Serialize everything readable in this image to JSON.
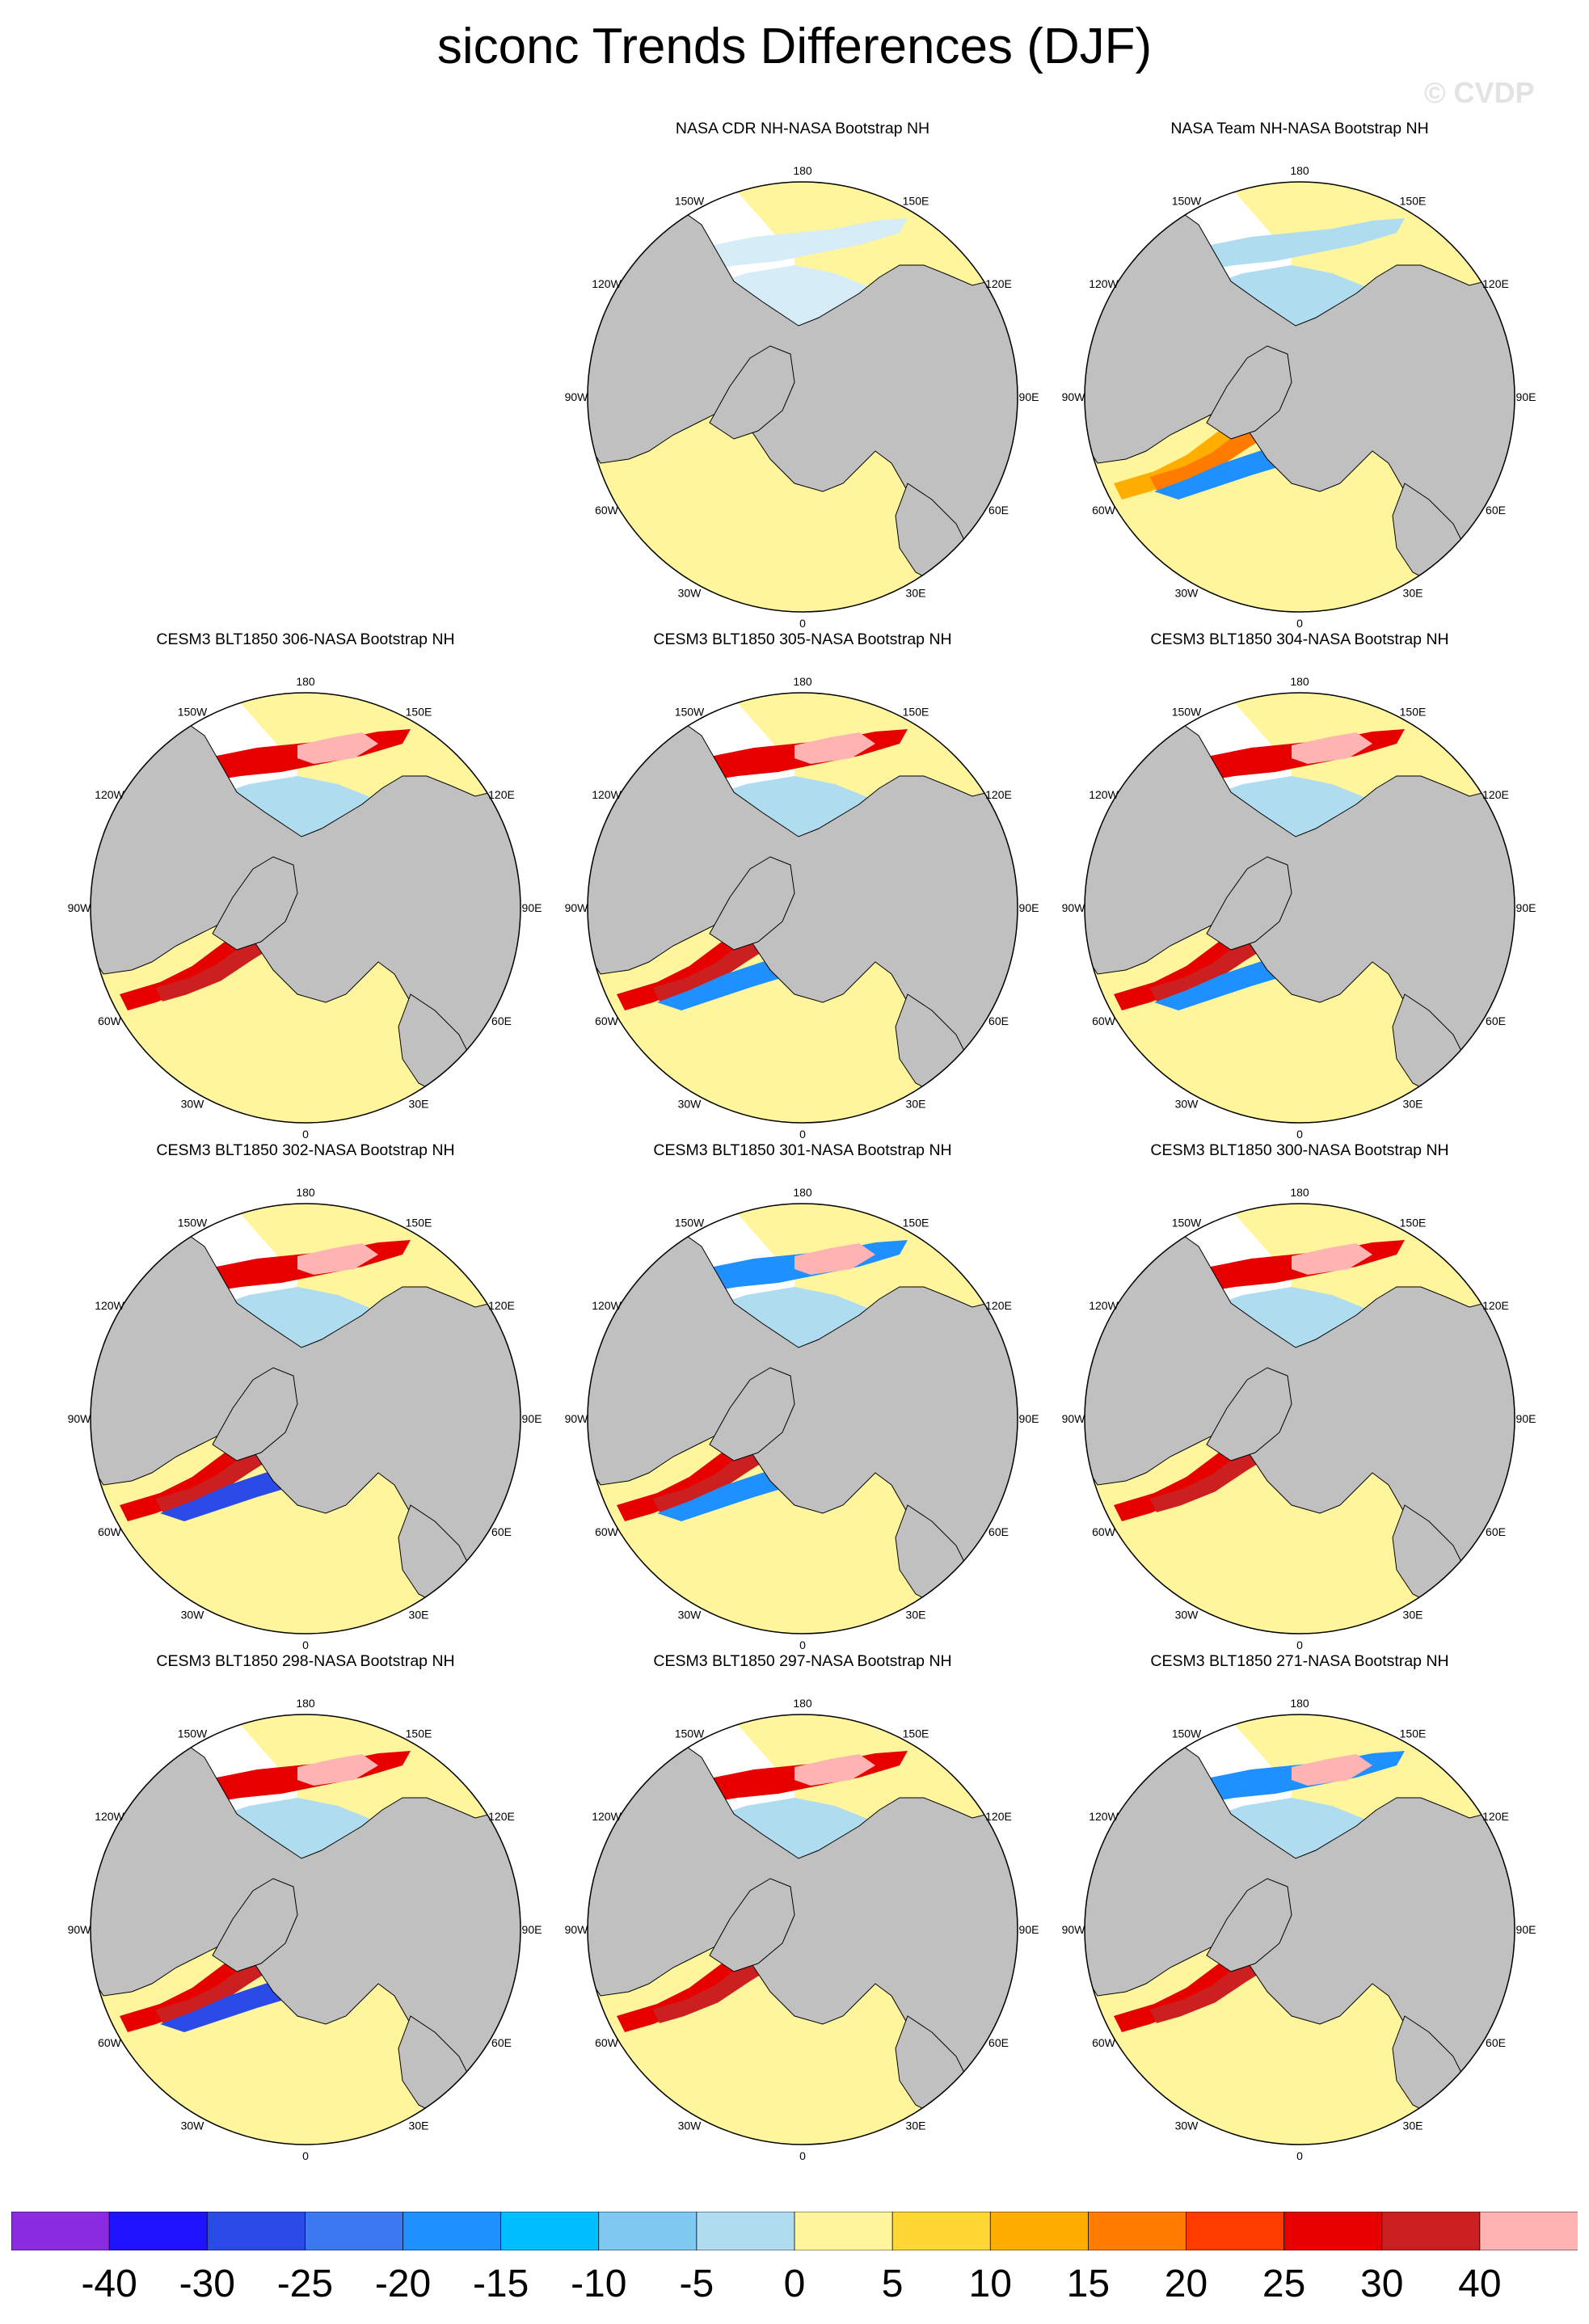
{
  "figure": {
    "title": "siconc Trends Differences (DJF)",
    "credit": "© CVDP"
  },
  "panels": [
    {
      "title": "NASA CDR NH-NASA Bootstrap NH"
    },
    {
      "title": "NASA Team NH-NASA Bootstrap NH"
    },
    {
      "title": "CESM3 BLT1850 306-NASA Bootstrap NH"
    },
    {
      "title": "CESM3 BLT1850 305-NASA Bootstrap NH"
    },
    {
      "title": "CESM3 BLT1850 304-NASA Bootstrap NH"
    },
    {
      "title": "CESM3 BLT1850 302-NASA Bootstrap NH"
    },
    {
      "title": "CESM3 BLT1850 301-NASA Bootstrap NH"
    },
    {
      "title": "CESM3 BLT1850 300-NASA Bootstrap NH"
    },
    {
      "title": "CESM3 BLT1850 298-NASA Bootstrap NH"
    },
    {
      "title": "CESM3 BLT1850 297-NASA Bootstrap NH"
    },
    {
      "title": "CESM3 BLT1850 271-NASA Bootstrap NH"
    }
  ],
  "map": {
    "projection": "north polar stereographic",
    "longitude_labels": [
      "180",
      "150E",
      "120E",
      "90E",
      "60E",
      "30E",
      "0",
      "30W",
      "60W",
      "90W",
      "120W",
      "150W"
    ],
    "land_color": "#c0c0c0",
    "coast_color": "#000000"
  },
  "legend": {
    "colors": [
      "#8a2be2",
      "#1e12ff",
      "#2b4be8",
      "#3c78f0",
      "#1e90ff",
      "#00bfff",
      "#7ec8f2",
      "#b0dcf0",
      "#fff59d",
      "#ffd633",
      "#ffae00",
      "#ff7c00",
      "#ff3c00",
      "#e60000",
      "#cc2020",
      "#ffb3b3"
    ],
    "labels": [
      "-40",
      "-30",
      "-25",
      "-20",
      "-15",
      "-10",
      "-5",
      "0",
      "5",
      "10",
      "15",
      "20",
      "25",
      "30",
      "40"
    ]
  }
}
